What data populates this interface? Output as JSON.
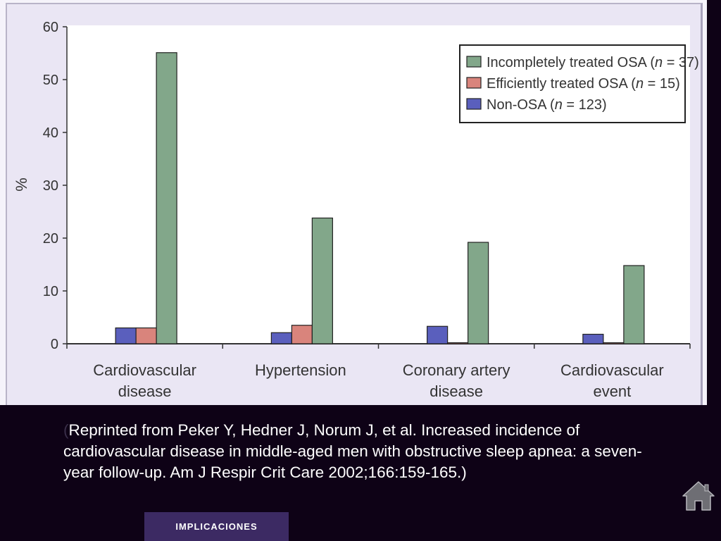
{
  "chart_data": {
    "type": "bar",
    "categories": [
      [
        "Cardiovascular",
        "disease"
      ],
      [
        "Hypertension"
      ],
      [
        "Coronary artery",
        "disease"
      ],
      [
        "Cardiovascular",
        "event"
      ]
    ],
    "series": [
      {
        "name": "Non-OSA (n = 123)",
        "color": "#5a5fbd",
        "values": [
          3.0,
          2.1,
          3.3,
          1.8
        ]
      },
      {
        "name": "Efficiently treated OSA (n = 15)",
        "color": "#d9847c",
        "values": [
          3.0,
          3.5,
          0.2,
          0.2
        ]
      },
      {
        "name": "Incompletely treated OSA (n = 37)",
        "color": "#82a78a",
        "values": [
          55.1,
          23.8,
          19.2,
          14.8
        ]
      }
    ],
    "legend": [
      {
        "prefix": "Incompletely treated OSA (",
        "italic": "n",
        "suffix": " = 37)",
        "color": "#82a78a"
      },
      {
        "prefix": "Efficiently treated OSA (",
        "italic": "n",
        "suffix": " = 15)",
        "color": "#d9847c"
      },
      {
        "prefix": "Non-OSA (",
        "italic": "n",
        "suffix": " = 123)",
        "color": "#5a5fbd"
      }
    ],
    "legend_position": "top-right",
    "ylabel": "%",
    "ylim": [
      0,
      60
    ],
    "yticks": [
      0,
      10,
      20,
      30,
      40,
      50,
      60
    ],
    "grid": false
  },
  "citation": {
    "open_paren": "(",
    "text": "Reprinted from Peker Y, Hedner J, Norum J, et al. Increased incidence of cardiovascular disease in middle-aged men with obstructive sleep apnea: a seven-year follow-up. Am J Respir Crit Care 2002;166:159-165.)"
  },
  "nav": {
    "implicaciones_label": "IMPLICACIONES"
  },
  "icons": {
    "home": "home-icon"
  }
}
